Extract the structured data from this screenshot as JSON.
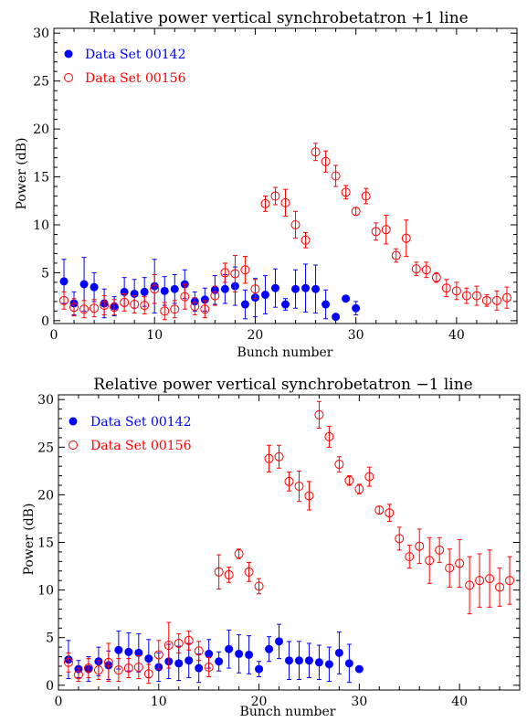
{
  "chart_data": [
    {
      "type": "scatter",
      "title": "Relative power vertical synchrobetatron +1 line",
      "xlabel": "Bunch number",
      "ylabel": "Power (dB)",
      "xlim": [
        0,
        46
      ],
      "ylim": [
        -0.3,
        30.5
      ],
      "xticks": [
        0,
        10,
        20,
        30,
        40
      ],
      "yticks": [
        0,
        5,
        10,
        15,
        20,
        25,
        30
      ],
      "legend_position": "top-left",
      "grid": false,
      "series": [
        {
          "name": "Data Set 00142",
          "marker": "filled-circle",
          "color": "#0000ff",
          "points": [
            [
              1,
              4.1,
              2.3
            ],
            [
              2,
              1.8,
              1.2
            ],
            [
              3,
              3.8,
              2.8
            ],
            [
              4,
              3.5,
              1.5
            ],
            [
              5,
              1.8,
              1.5
            ],
            [
              6,
              1.5,
              1.0
            ],
            [
              7,
              3.0,
              1.5
            ],
            [
              8,
              2.8,
              1.5
            ],
            [
              9,
              3.0,
              1.5
            ],
            [
              10,
              3.6,
              2.8
            ],
            [
              11,
              3.1,
              1.5
            ],
            [
              12,
              3.3,
              1.5
            ],
            [
              13,
              3.8,
              1.5
            ],
            [
              14,
              2.0,
              1.0
            ],
            [
              15,
              2.2,
              1.2
            ],
            [
              16,
              3.2,
              1.5
            ],
            [
              17,
              3.3,
              1.5
            ],
            [
              18,
              3.6,
              2.0
            ],
            [
              19,
              1.7,
              1.5
            ],
            [
              20,
              2.4,
              2.0
            ],
            [
              21,
              2.7,
              2.0
            ],
            [
              22,
              3.4,
              2.0
            ],
            [
              23,
              1.7,
              0.6
            ],
            [
              24,
              3.3,
              2.0
            ],
            [
              25,
              3.4,
              2.5
            ],
            [
              26,
              3.3,
              2.5
            ],
            [
              27,
              1.7,
              1.5
            ],
            [
              28,
              0.4,
              0.0
            ],
            [
              29,
              2.3,
              0.0
            ],
            [
              30,
              1.3,
              0.7
            ]
          ]
        },
        {
          "name": "Data Set 00156",
          "marker": "open-circle",
          "color": "#ff0000",
          "points": [
            [
              1,
              2.1,
              0.9
            ],
            [
              2,
              1.4,
              0.9
            ],
            [
              3,
              1.2,
              0.9
            ],
            [
              4,
              1.3,
              0.9
            ],
            [
              5,
              1.6,
              1.0
            ],
            [
              6,
              1.4,
              0.8
            ],
            [
              7,
              1.9,
              0.9
            ],
            [
              8,
              1.7,
              0.9
            ],
            [
              9,
              1.6,
              0.9
            ],
            [
              10,
              3.3,
              1.5
            ],
            [
              11,
              1.0,
              0.9
            ],
            [
              12,
              1.2,
              0.9
            ],
            [
              13,
              2.5,
              1.3
            ],
            [
              14,
              1.5,
              0.9
            ],
            [
              15,
              1.2,
              0.9
            ],
            [
              16,
              2.6,
              1.0
            ],
            [
              17,
              5.0,
              1.0
            ],
            [
              18,
              4.9,
              1.9
            ],
            [
              19,
              5.3,
              1.4
            ],
            [
              20,
              3.3,
              1.0
            ],
            [
              21,
              12.2,
              0.8
            ],
            [
              22,
              13.0,
              0.9
            ],
            [
              23,
              12.3,
              1.4
            ],
            [
              24,
              10.0,
              1.4
            ],
            [
              25,
              8.4,
              0.8
            ],
            [
              26,
              17.6,
              0.9
            ],
            [
              27,
              16.6,
              1.1
            ],
            [
              28,
              15.1,
              1.1
            ],
            [
              29,
              13.4,
              0.7
            ],
            [
              30,
              11.4,
              0.4
            ],
            [
              31,
              13.0,
              0.8
            ],
            [
              32,
              9.3,
              0.9
            ],
            [
              33,
              9.5,
              1.5
            ],
            [
              34,
              6.8,
              0.7
            ],
            [
              35,
              8.6,
              1.9
            ],
            [
              36,
              5.4,
              0.7
            ],
            [
              37,
              5.3,
              0.8
            ],
            [
              38,
              4.5,
              0.5
            ],
            [
              39,
              3.4,
              0.9
            ],
            [
              40,
              3.1,
              0.9
            ],
            [
              41,
              2.6,
              0.8
            ],
            [
              42,
              2.6,
              1.0
            ],
            [
              43,
              2.1,
              0.6
            ],
            [
              44,
              2.1,
              1.0
            ],
            [
              45,
              2.4,
              1.1
            ]
          ]
        }
      ]
    },
    {
      "type": "scatter",
      "title": "Relative power vertical synchrobetatron −1 line",
      "xlabel": "Bunch number",
      "ylabel": "Power (dB)",
      "xlim": [
        0,
        46
      ],
      "ylim": [
        -0.5,
        30.5
      ],
      "xticks": [
        0,
        10,
        20,
        30,
        40
      ],
      "yticks": [
        0,
        5,
        10,
        15,
        20,
        25,
        30
      ],
      "legend_position": "top-left",
      "grid": false,
      "series": [
        {
          "name": "Data Set 00142",
          "marker": "filled-circle",
          "color": "#0000ff",
          "points": [
            [
              1,
              2.7,
              2.0
            ],
            [
              2,
              1.7,
              0.9
            ],
            [
              3,
              1.7,
              1.3
            ],
            [
              4,
              2.5,
              1.5
            ],
            [
              5,
              2.1,
              1.5
            ],
            [
              6,
              3.7,
              2.0
            ],
            [
              7,
              3.5,
              2.0
            ],
            [
              8,
              3.4,
              2.0
            ],
            [
              9,
              2.8,
              2.0
            ],
            [
              10,
              1.9,
              1.5
            ],
            [
              11,
              2.5,
              1.8
            ],
            [
              12,
              2.3,
              1.8
            ],
            [
              13,
              2.6,
              1.8
            ],
            [
              14,
              1.8,
              1.5
            ],
            [
              15,
              3.3,
              1.5
            ],
            [
              16,
              2.5,
              1.0
            ],
            [
              17,
              3.8,
              2.0
            ],
            [
              18,
              3.3,
              2.0
            ],
            [
              19,
              3.2,
              2.0
            ],
            [
              20,
              1.7,
              0.8
            ],
            [
              21,
              3.8,
              1.3
            ],
            [
              22,
              4.6,
              1.8
            ],
            [
              23,
              2.6,
              2.0
            ],
            [
              24,
              2.6,
              2.0
            ],
            [
              25,
              2.6,
              1.8
            ],
            [
              26,
              2.4,
              1.8
            ],
            [
              27,
              2.2,
              1.8
            ],
            [
              28,
              3.4,
              2.2
            ],
            [
              29,
              2.3,
              2.0
            ],
            [
              30,
              1.7,
              0.0
            ]
          ]
        },
        {
          "name": "Data Set 00156",
          "marker": "open-circle",
          "color": "#ff0000",
          "points": [
            [
              1,
              2.4,
              1.0
            ],
            [
              2,
              1.1,
              0.7
            ],
            [
              3,
              1.8,
              1.0
            ],
            [
              4,
              1.6,
              1.0
            ],
            [
              5,
              2.4,
              2.0
            ],
            [
              6,
              1.6,
              1.2
            ],
            [
              7,
              1.8,
              1.0
            ],
            [
              8,
              1.9,
              1.2
            ],
            [
              9,
              1.2,
              1.0
            ],
            [
              10,
              3.2,
              1.5
            ],
            [
              11,
              4.2,
              2.4
            ],
            [
              12,
              4.4,
              1.0
            ],
            [
              13,
              4.7,
              1.0
            ],
            [
              14,
              3.6,
              1.0
            ],
            [
              15,
              1.9,
              1.0
            ],
            [
              16,
              11.9,
              1.8
            ],
            [
              17,
              11.6,
              0.8
            ],
            [
              18,
              13.8,
              0.5
            ],
            [
              19,
              11.9,
              1.0
            ],
            [
              20,
              10.4,
              0.8
            ],
            [
              21,
              23.8,
              1.4
            ],
            [
              22,
              24.0,
              1.2
            ],
            [
              23,
              21.4,
              1.0
            ],
            [
              24,
              20.9,
              1.6
            ],
            [
              25,
              19.9,
              1.5
            ],
            [
              26,
              28.4,
              1.4
            ],
            [
              27,
              26.1,
              1.1
            ],
            [
              28,
              23.2,
              0.8
            ],
            [
              29,
              21.5,
              0.5
            ],
            [
              30,
              20.6,
              0.5
            ],
            [
              31,
              21.9,
              1.0
            ],
            [
              32,
              18.4,
              0.4
            ],
            [
              33,
              18.1,
              0.9
            ],
            [
              34,
              15.4,
              1.2
            ],
            [
              35,
              13.5,
              1.2
            ],
            [
              36,
              14.6,
              1.8
            ],
            [
              37,
              13.1,
              2.4
            ],
            [
              38,
              14.2,
              1.3
            ],
            [
              39,
              12.3,
              2.0
            ],
            [
              40,
              12.8,
              2.5
            ],
            [
              41,
              10.5,
              3.0
            ],
            [
              42,
              11.0,
              2.8
            ],
            [
              43,
              11.2,
              3.0
            ],
            [
              44,
              10.3,
              2.0
            ],
            [
              45,
              11.0,
              2.5
            ]
          ]
        }
      ]
    }
  ]
}
